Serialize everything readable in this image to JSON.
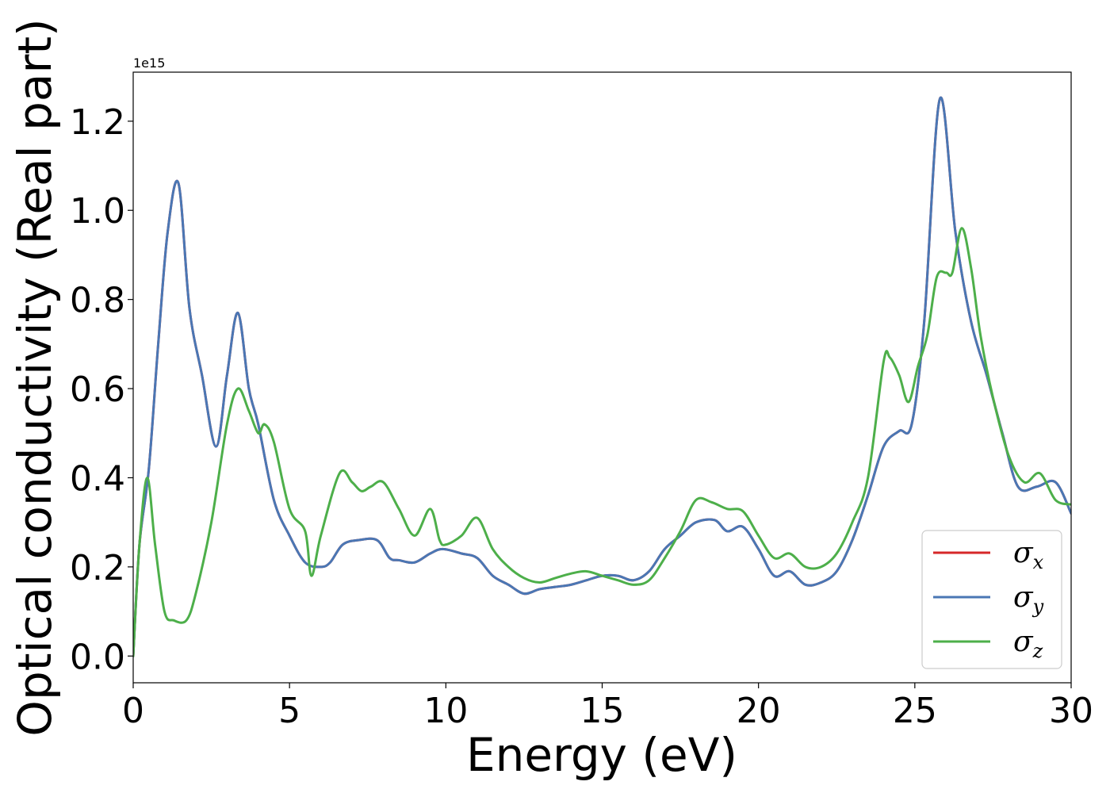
{
  "chart_data": {
    "type": "line",
    "title": "",
    "xlabel": "Energy (eV)",
    "ylabel": "Optical conductivity (Real part)",
    "y_offset_label": "1e15",
    "xlim": [
      0,
      30
    ],
    "ylim": [
      -0.06,
      1.31
    ],
    "xticks": [
      0,
      5,
      10,
      15,
      20,
      25,
      30
    ],
    "yticks": [
      0.0,
      0.2,
      0.4,
      0.6,
      0.8,
      1.0,
      1.2
    ],
    "ytick_labels": [
      "0.0",
      "0.2",
      "0.4",
      "0.6",
      "0.8",
      "1.0",
      "1.2"
    ],
    "grid": false,
    "legend_position": "lower-right",
    "series": [
      {
        "name": "σx",
        "symbol": "σ",
        "subscript": "x",
        "color": "#d62728",
        "x": [
          0,
          0.2,
          0.5,
          0.8,
          1.1,
          1.45,
          1.8,
          2.2,
          2.65,
          3.0,
          3.35,
          3.7,
          4.0,
          4.5,
          5.0,
          5.5,
          6.0,
          6.3,
          6.7,
          7.2,
          7.8,
          8.2,
          8.5,
          9.0,
          9.5,
          9.9,
          10.5,
          11.0,
          11.5,
          12.0,
          12.5,
          13.0,
          13.5,
          14.0,
          14.5,
          15.0,
          15.5,
          16.0,
          16.5,
          17.0,
          17.5,
          18.0,
          18.6,
          19.0,
          19.5,
          20.0,
          20.5,
          21.0,
          21.5,
          22.0,
          22.5,
          23.0,
          23.5,
          24.0,
          24.5,
          24.9,
          25.3,
          25.8,
          26.3,
          26.8,
          27.3,
          27.8,
          28.3,
          28.9,
          29.5,
          30
        ],
        "y": [
          0.0,
          0.25,
          0.42,
          0.7,
          0.95,
          1.06,
          0.78,
          0.63,
          0.47,
          0.63,
          0.77,
          0.6,
          0.52,
          0.35,
          0.27,
          0.21,
          0.2,
          0.21,
          0.25,
          0.26,
          0.26,
          0.22,
          0.215,
          0.21,
          0.23,
          0.24,
          0.23,
          0.22,
          0.18,
          0.16,
          0.14,
          0.15,
          0.155,
          0.16,
          0.17,
          0.18,
          0.18,
          0.17,
          0.19,
          0.24,
          0.27,
          0.3,
          0.305,
          0.28,
          0.29,
          0.24,
          0.18,
          0.19,
          0.16,
          0.165,
          0.19,
          0.26,
          0.36,
          0.47,
          0.505,
          0.52,
          0.75,
          1.25,
          0.95,
          0.75,
          0.63,
          0.5,
          0.38,
          0.38,
          0.39,
          0.32
        ]
      },
      {
        "name": "σy",
        "symbol": "σ",
        "subscript": "y",
        "color": "#4a77b4",
        "x": [
          0,
          0.2,
          0.5,
          0.8,
          1.1,
          1.45,
          1.8,
          2.2,
          2.65,
          3.0,
          3.35,
          3.7,
          4.0,
          4.5,
          5.0,
          5.5,
          6.0,
          6.3,
          6.7,
          7.2,
          7.8,
          8.2,
          8.5,
          9.0,
          9.5,
          9.9,
          10.5,
          11.0,
          11.5,
          12.0,
          12.5,
          13.0,
          13.5,
          14.0,
          14.5,
          15.0,
          15.5,
          16.0,
          16.5,
          17.0,
          17.5,
          18.0,
          18.6,
          19.0,
          19.5,
          20.0,
          20.5,
          21.0,
          21.5,
          22.0,
          22.5,
          23.0,
          23.5,
          24.0,
          24.5,
          24.9,
          25.3,
          25.8,
          26.3,
          26.8,
          27.3,
          27.8,
          28.3,
          28.9,
          29.5,
          30
        ],
        "y": [
          0.0,
          0.25,
          0.42,
          0.7,
          0.95,
          1.06,
          0.78,
          0.63,
          0.47,
          0.63,
          0.77,
          0.6,
          0.52,
          0.35,
          0.27,
          0.21,
          0.2,
          0.21,
          0.25,
          0.26,
          0.26,
          0.22,
          0.215,
          0.21,
          0.23,
          0.24,
          0.23,
          0.22,
          0.18,
          0.16,
          0.14,
          0.15,
          0.155,
          0.16,
          0.17,
          0.18,
          0.18,
          0.17,
          0.19,
          0.24,
          0.27,
          0.3,
          0.305,
          0.28,
          0.29,
          0.24,
          0.18,
          0.19,
          0.16,
          0.165,
          0.19,
          0.26,
          0.36,
          0.47,
          0.505,
          0.52,
          0.75,
          1.25,
          0.95,
          0.75,
          0.63,
          0.5,
          0.38,
          0.38,
          0.39,
          0.32
        ]
      },
      {
        "name": "σz",
        "symbol": "σ",
        "subscript": "z",
        "color": "#4daf4a",
        "x": [
          0,
          0.2,
          0.45,
          0.7,
          1.0,
          1.3,
          1.7,
          2.0,
          2.5,
          3.0,
          3.35,
          3.7,
          4.0,
          4.2,
          4.5,
          5.0,
          5.5,
          5.7,
          6.0,
          6.6,
          7.0,
          7.3,
          7.6,
          8.0,
          8.5,
          9.0,
          9.5,
          9.8,
          10.0,
          10.5,
          11.0,
          11.5,
          12.0,
          12.5,
          13.0,
          13.5,
          14.0,
          14.5,
          15.0,
          15.5,
          16.0,
          16.5,
          17.0,
          17.5,
          18.0,
          18.5,
          19.0,
          19.5,
          20.0,
          20.5,
          21.0,
          21.5,
          22.0,
          22.5,
          23.0,
          23.5,
          24.0,
          24.2,
          24.5,
          24.8,
          25.1,
          25.4,
          25.7,
          26.0,
          26.2,
          26.5,
          26.8,
          27.1,
          27.5,
          28.0,
          28.5,
          29.0,
          29.5,
          30
        ],
        "y": [
          0.0,
          0.25,
          0.4,
          0.25,
          0.1,
          0.08,
          0.08,
          0.14,
          0.3,
          0.52,
          0.6,
          0.55,
          0.5,
          0.52,
          0.48,
          0.33,
          0.28,
          0.18,
          0.27,
          0.41,
          0.39,
          0.37,
          0.38,
          0.39,
          0.33,
          0.27,
          0.33,
          0.26,
          0.25,
          0.27,
          0.31,
          0.24,
          0.2,
          0.175,
          0.165,
          0.175,
          0.185,
          0.19,
          0.18,
          0.17,
          0.16,
          0.17,
          0.22,
          0.28,
          0.35,
          0.345,
          0.33,
          0.325,
          0.27,
          0.22,
          0.23,
          0.2,
          0.2,
          0.23,
          0.3,
          0.4,
          0.66,
          0.67,
          0.63,
          0.57,
          0.65,
          0.72,
          0.85,
          0.86,
          0.86,
          0.96,
          0.87,
          0.72,
          0.58,
          0.45,
          0.39,
          0.41,
          0.35,
          0.34
        ]
      }
    ]
  }
}
